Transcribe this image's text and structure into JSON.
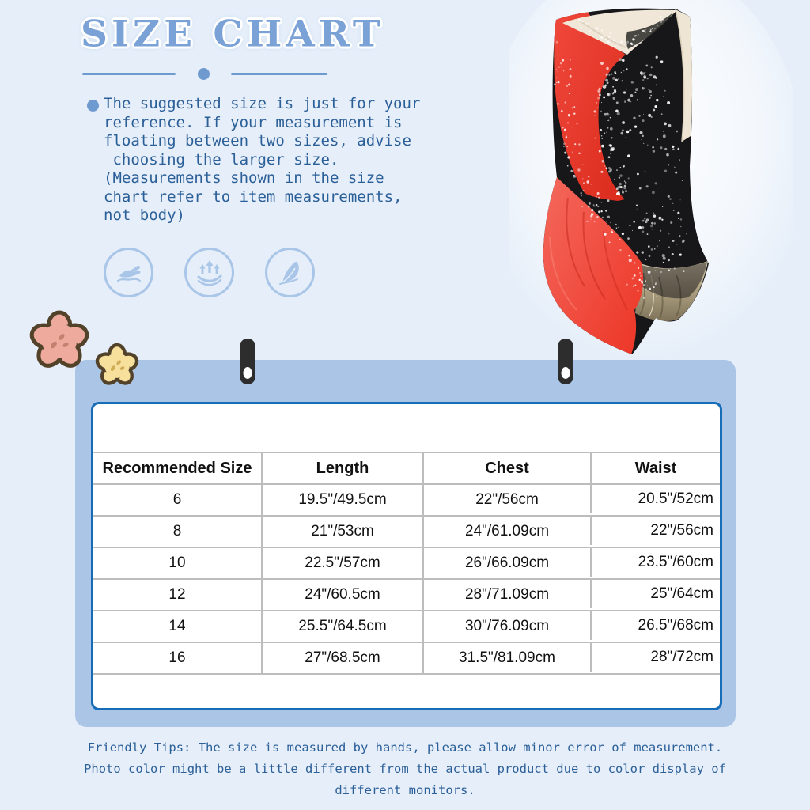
{
  "header": {
    "title": "SIZE CHART"
  },
  "note": {
    "lines": [
      "The suggested size is just for your",
      "reference. If your measurement is",
      "floating between two sizes, advise",
      " choosing the larger size.",
      "(Measurements shown in the size",
      "chart refer to item measurements,",
      "not body)"
    ]
  },
  "features": [
    {
      "icon": "soft-hand-feel-icon"
    },
    {
      "icon": "high-elasticity-icon"
    },
    {
      "icon": "lightweight-feather-icon"
    }
  ],
  "size_table": {
    "headers": [
      "Recommended Size",
      "Length",
      "Chest",
      "Waist"
    ],
    "rows": [
      [
        "6",
        "19.5\"/49.5cm",
        "22\"/56cm",
        "20.5\"/52cm"
      ],
      [
        "8",
        "21\"/53cm",
        "24\"/61.09cm",
        "22\"/56cm"
      ],
      [
        "10",
        "22.5\"/57cm",
        "26\"/66.09cm",
        "23.5\"/60cm"
      ],
      [
        "12",
        "24\"/60.5cm",
        "28\"/71.09cm",
        "25\"/64cm"
      ],
      [
        "14",
        "25.5\"/64.5cm",
        "30\"/76.09cm",
        "26.5\"/68cm"
      ],
      [
        "16",
        "27\"/68.5cm",
        "31.5\"/81.09cm",
        "28\"/72cm"
      ]
    ]
  },
  "tips": {
    "lines": [
      "Friendly Tips: The size is measured by hands, please allow minor error of measurement.",
      "Photo color might be a little different from the actual product due to color display of",
      "different monitors."
    ]
  },
  "product": {
    "name": "sleeveless figure skating dress, red/black with rhinestones"
  },
  "colors": {
    "page_bg": "#e5eef9",
    "card_bg": "#abc5e6",
    "table_border": "#176cb8",
    "table_grid": "#bdbdbd",
    "title_blue": "#7ba2d7",
    "text_blue": "#2b5f98",
    "icon_blue": "#a9c5e8",
    "dress_red": "#e8392b",
    "dress_black": "#17171a",
    "dress_cream": "#f1e7d8",
    "dress_gold": "#b3a586",
    "clip_black": "#2d2d2d",
    "flower_pink": "#edaa9d",
    "flower_yellow": "#f6e09c"
  }
}
